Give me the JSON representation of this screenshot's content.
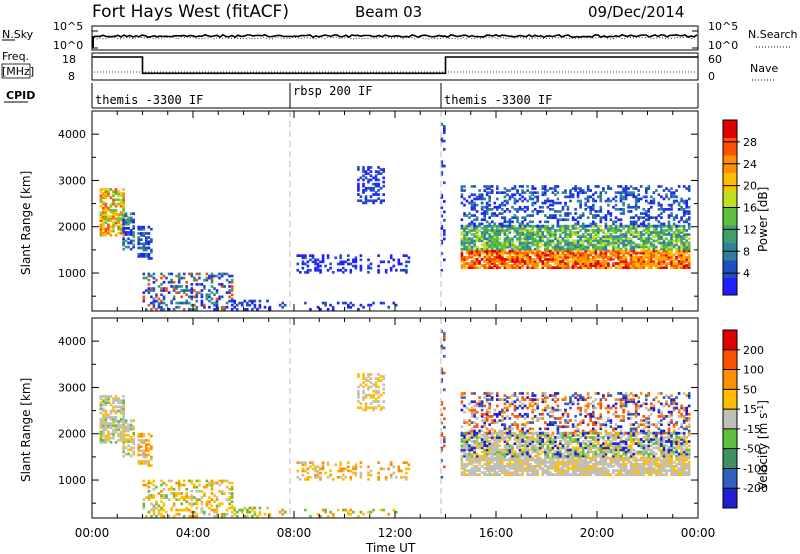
{
  "header": {
    "station": "Fort Hays West (fitACF)",
    "beam": "Beam 03",
    "date": "09/Dec/2014"
  },
  "noise_panel": {
    "left_label": "N.Sky",
    "right_label": "N.Search",
    "top_tick": "10^5",
    "bottom_tick": "10^0"
  },
  "freq_panel": {
    "left_label_1": "Freq.",
    "left_label_2": "[MHz]",
    "right_label": "Nave",
    "left_ticks": [
      "18",
      "8"
    ],
    "right_ticks": [
      "60",
      "0"
    ]
  },
  "cpid_panel": {
    "label": "CPID",
    "segments": [
      {
        "start_hour": 0,
        "name": "themis -3300 IF"
      },
      {
        "start_hour": 8,
        "name": "rbsp 200 IF"
      },
      {
        "start_hour": 14,
        "name": "themis -3300 IF"
      }
    ]
  },
  "axes": {
    "ylabel": "Slant Range [km]",
    "xlabel": "Time UT",
    "yticks": [
      "1000",
      "2000",
      "3000",
      "4000"
    ],
    "xticks": [
      "00:00",
      "04:00",
      "08:00",
      "12:00",
      "16:00",
      "20:00",
      "00:00"
    ]
  },
  "power_colorbar": {
    "label": "Power [dB]",
    "ticks": [
      "4",
      "8",
      "12",
      "16",
      "20",
      "24",
      "28"
    ],
    "colors": [
      "#1f1fff",
      "#1f4fbf",
      "#2f7f9f",
      "#3f9f6f",
      "#5fbf3f",
      "#bfdf1f",
      "#ffbf00",
      "#ff8f00",
      "#ff4f00",
      "#e00000"
    ]
  },
  "velocity_colorbar": {
    "label": "Velocity [m s^-1]",
    "ticks": [
      "200",
      "100",
      "50",
      "15",
      "-15",
      "-50",
      "-100",
      "-200"
    ],
    "colors": [
      "#1f1fcf",
      "#2f5fbf",
      "#3f8f5f",
      "#5fbf3f",
      "#bfbfb8",
      "#ffbf00",
      "#ff8f00",
      "#ff4f00",
      "#e00000"
    ]
  },
  "chart_data": {
    "type": "heatmap",
    "x_range_hours": [
      0,
      24
    ],
    "y_range_km": [
      180,
      4500
    ],
    "dashed_markers_hours": [
      8,
      14
    ],
    "freq_mhz_segments": [
      {
        "start_hour": 0,
        "end_hour": 2,
        "value": 16.5
      },
      {
        "start_hour": 2,
        "end_hour": 14,
        "value": 10.5
      },
      {
        "start_hour": 14,
        "end_hour": 24,
        "value": 16.5
      }
    ]
  }
}
